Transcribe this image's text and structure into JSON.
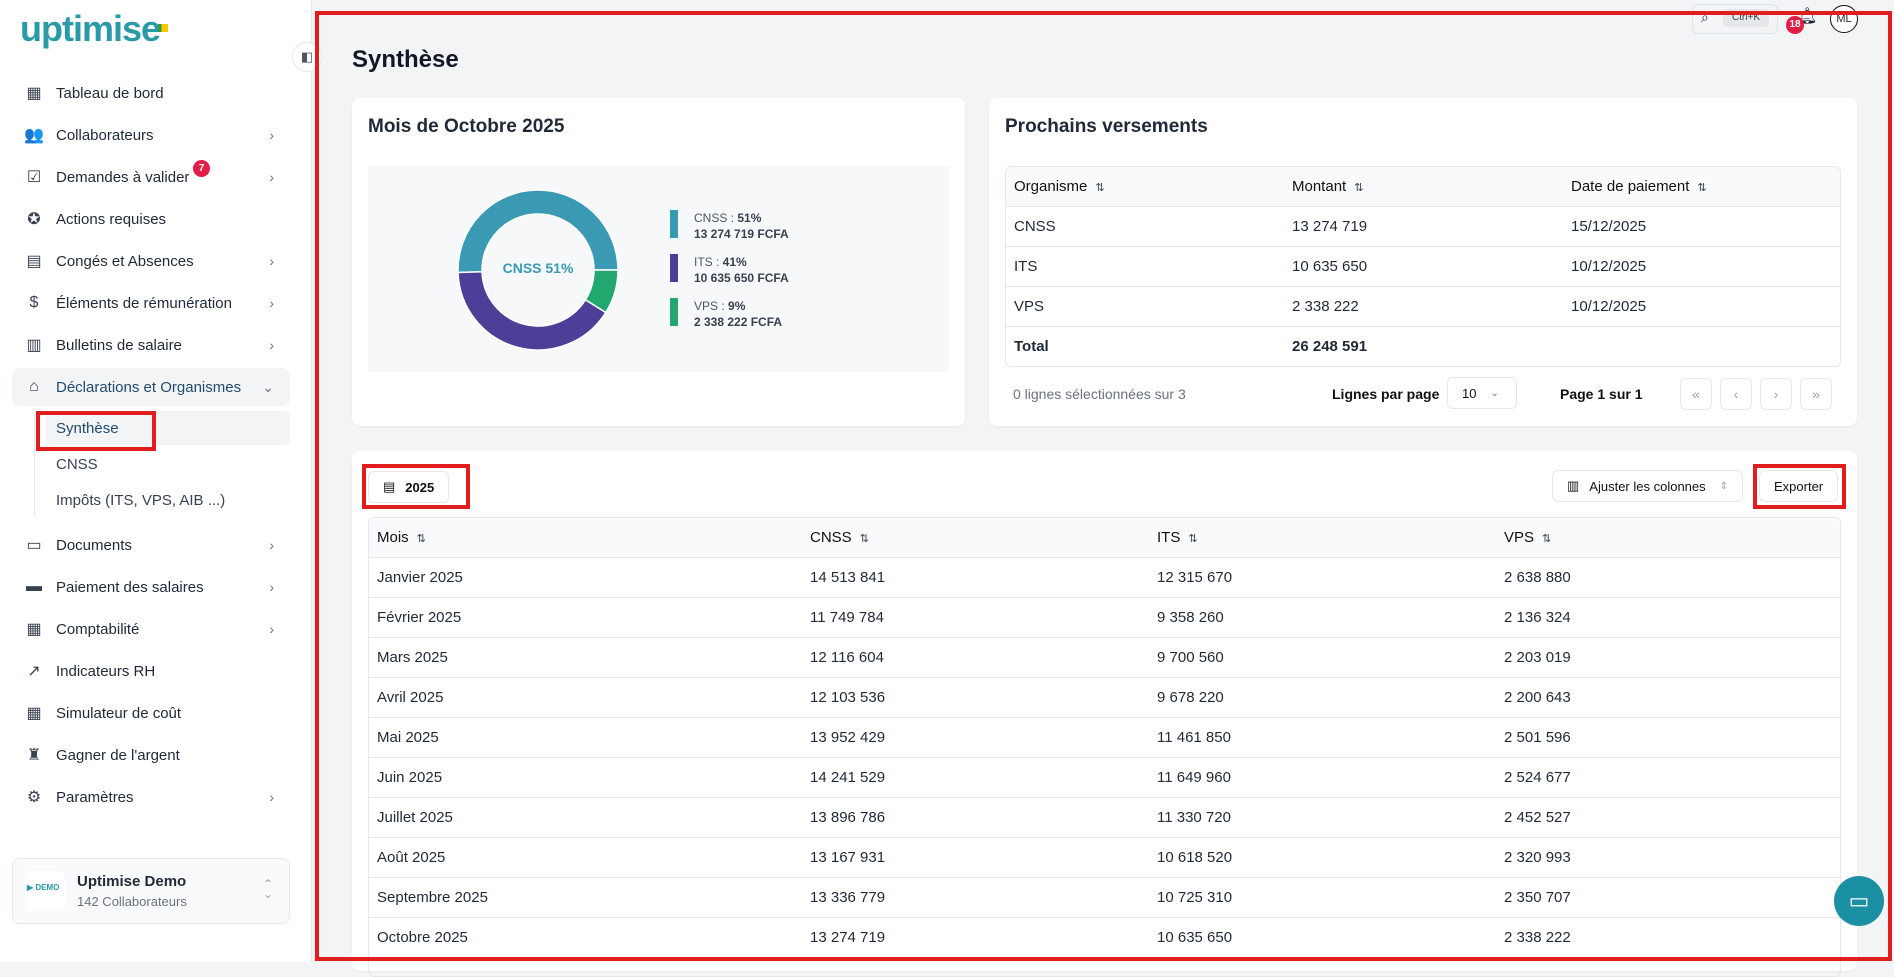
{
  "app": {
    "logo": "uptimise",
    "search_shortcut": "Ctrl+K",
    "notifications_count": "18",
    "avatar_initials": "ML"
  },
  "sidebar": {
    "items": [
      {
        "label": "Tableau de bord",
        "icon": "grid-icon",
        "glyph": "▦",
        "chev": false
      },
      {
        "label": "Collaborateurs",
        "icon": "users-icon",
        "glyph": "👥",
        "chev": true
      },
      {
        "label": "Demandes à valider",
        "icon": "checklist-icon",
        "glyph": "☑",
        "chev": true,
        "badge": "7"
      },
      {
        "label": "Actions requises",
        "icon": "badge-check-icon",
        "glyph": "✪",
        "chev": false
      },
      {
        "label": "Congés et Absences",
        "icon": "calendar-icon",
        "glyph": "▤",
        "chev": true
      },
      {
        "label": "Éléments de rémunération",
        "icon": "money-icon",
        "glyph": "$",
        "chev": true
      },
      {
        "label": "Bulletins de salaire",
        "icon": "receipt-icon",
        "glyph": "▥",
        "chev": true
      },
      {
        "label": "Déclarations et Organismes",
        "icon": "building-icon",
        "glyph": "⌂",
        "chev": true,
        "active": true
      }
    ],
    "subitems": [
      {
        "label": "Synthèse",
        "active": true
      },
      {
        "label": "CNSS"
      },
      {
        "label": "Impôts (ITS, VPS, AIB ...)"
      }
    ],
    "items2": [
      {
        "label": "Documents",
        "icon": "folder-icon",
        "glyph": "▭",
        "chev": true
      },
      {
        "label": "Paiement des salaires",
        "icon": "card-icon",
        "glyph": "▬",
        "chev": true
      },
      {
        "label": "Comptabilité",
        "icon": "calculator-icon",
        "glyph": "▦",
        "chev": true
      },
      {
        "label": "Indicateurs RH",
        "icon": "chart-icon",
        "glyph": "↗",
        "chev": false
      },
      {
        "label": "Simulateur de coût",
        "icon": "calculator-icon",
        "glyph": "▦",
        "chev": false
      },
      {
        "label": "Gagner de l'argent",
        "icon": "medal-icon",
        "glyph": "♜",
        "chev": false
      },
      {
        "label": "Paramètres",
        "icon": "gear-icon",
        "glyph": "⚙",
        "chev": true
      }
    ],
    "org": {
      "name": "Uptimise Demo",
      "count": "142 Collaborateurs",
      "logo_text": "DEMO UPTIMISE"
    }
  },
  "page": {
    "title": "Synthèse"
  },
  "summary": {
    "title": "Mois de Octobre 2025",
    "center_label": "CNSS 51%",
    "chart_data": {
      "type": "pie",
      "slices": [
        {
          "name": "CNSS",
          "percent": 51,
          "amount": "13 274 719 FCFA",
          "legend": "CNSS : ",
          "pct_label": "51%",
          "color": "#3a9ab3"
        },
        {
          "name": "ITS",
          "percent": 41,
          "amount": "10 635 650 FCFA",
          "legend": "ITS : ",
          "pct_label": "41%",
          "color": "#4d3f98"
        },
        {
          "name": "VPS",
          "percent": 9,
          "amount": "2 338 222 FCFA",
          "legend": "VPS : ",
          "pct_label": "9%",
          "color": "#22a86e"
        }
      ]
    }
  },
  "payments": {
    "title": "Prochains versements",
    "headers": [
      "Organisme",
      "Montant",
      "Date de paiement"
    ],
    "rows": [
      [
        "CNSS",
        "13 274 719",
        "15/12/2025"
      ],
      [
        "ITS",
        "10 635 650",
        "10/12/2025"
      ],
      [
        "VPS",
        "2 338 222",
        "10/12/2025"
      ]
    ],
    "total": [
      "Total",
      "26 248 591"
    ],
    "selected": "0 lignes sélectionnées sur 3",
    "rows_per_page_label": "Lignes par page",
    "rows_per_page": "10",
    "page_info": "Page 1 sur 1"
  },
  "monthly": {
    "year": "2025",
    "adjust_label": "Ajuster les colonnes",
    "export_label": "Exporter",
    "headers": [
      "Mois",
      "CNSS",
      "ITS",
      "VPS"
    ],
    "rows": [
      [
        "Janvier 2025",
        "14 513 841",
        "12 315 670",
        "2 638 880"
      ],
      [
        "Février 2025",
        "11 749 784",
        "9 358 260",
        "2 136 324"
      ],
      [
        "Mars 2025",
        "12 116 604",
        "9 700 560",
        "2 203 019"
      ],
      [
        "Avril 2025",
        "12 103 536",
        "9 678 220",
        "2 200 643"
      ],
      [
        "Mai 2025",
        "13 952 429",
        "11 461 850",
        "2 501 596"
      ],
      [
        "Juin 2025",
        "14 241 529",
        "11 649 960",
        "2 524 677"
      ],
      [
        "Juillet 2025",
        "13 896 786",
        "11 330 720",
        "2 452 527"
      ],
      [
        "Août 2025",
        "13 167 931",
        "10 618 520",
        "2 320 993"
      ],
      [
        "Septembre 2025",
        "13 336 779",
        "10 725 310",
        "2 350 707"
      ],
      [
        "Octobre 2025",
        "13 274 719",
        "10 635 650",
        "2 338 222"
      ]
    ]
  }
}
